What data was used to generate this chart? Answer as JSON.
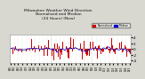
{
  "title_line1": "Milwaukee Weather Wind Direction",
  "title_line2": "Normalized and Median",
  "title_line3": "(24 Hours) (New)",
  "title_fontsize": 3.2,
  "background_color": "#d8d8d0",
  "plot_bg_color": "#ffffff",
  "bar_color": "#cc0000",
  "median_color": "#0000cc",
  "legend_label_norm": "Normalized",
  "legend_label_med": "Median",
  "legend_color_norm": "#cc0000",
  "legend_color_med": "#0000cc",
  "ylim": [
    -5,
    5
  ],
  "ytick_labels": [
    "-4",
    "-2",
    "0",
    "2",
    "4"
  ],
  "ytick_vals": [
    -4,
    -2,
    0,
    2,
    4
  ],
  "n_bars": 144,
  "seed": 42,
  "grid_color": "#bbbbaa",
  "zero_line_color": "#888888"
}
